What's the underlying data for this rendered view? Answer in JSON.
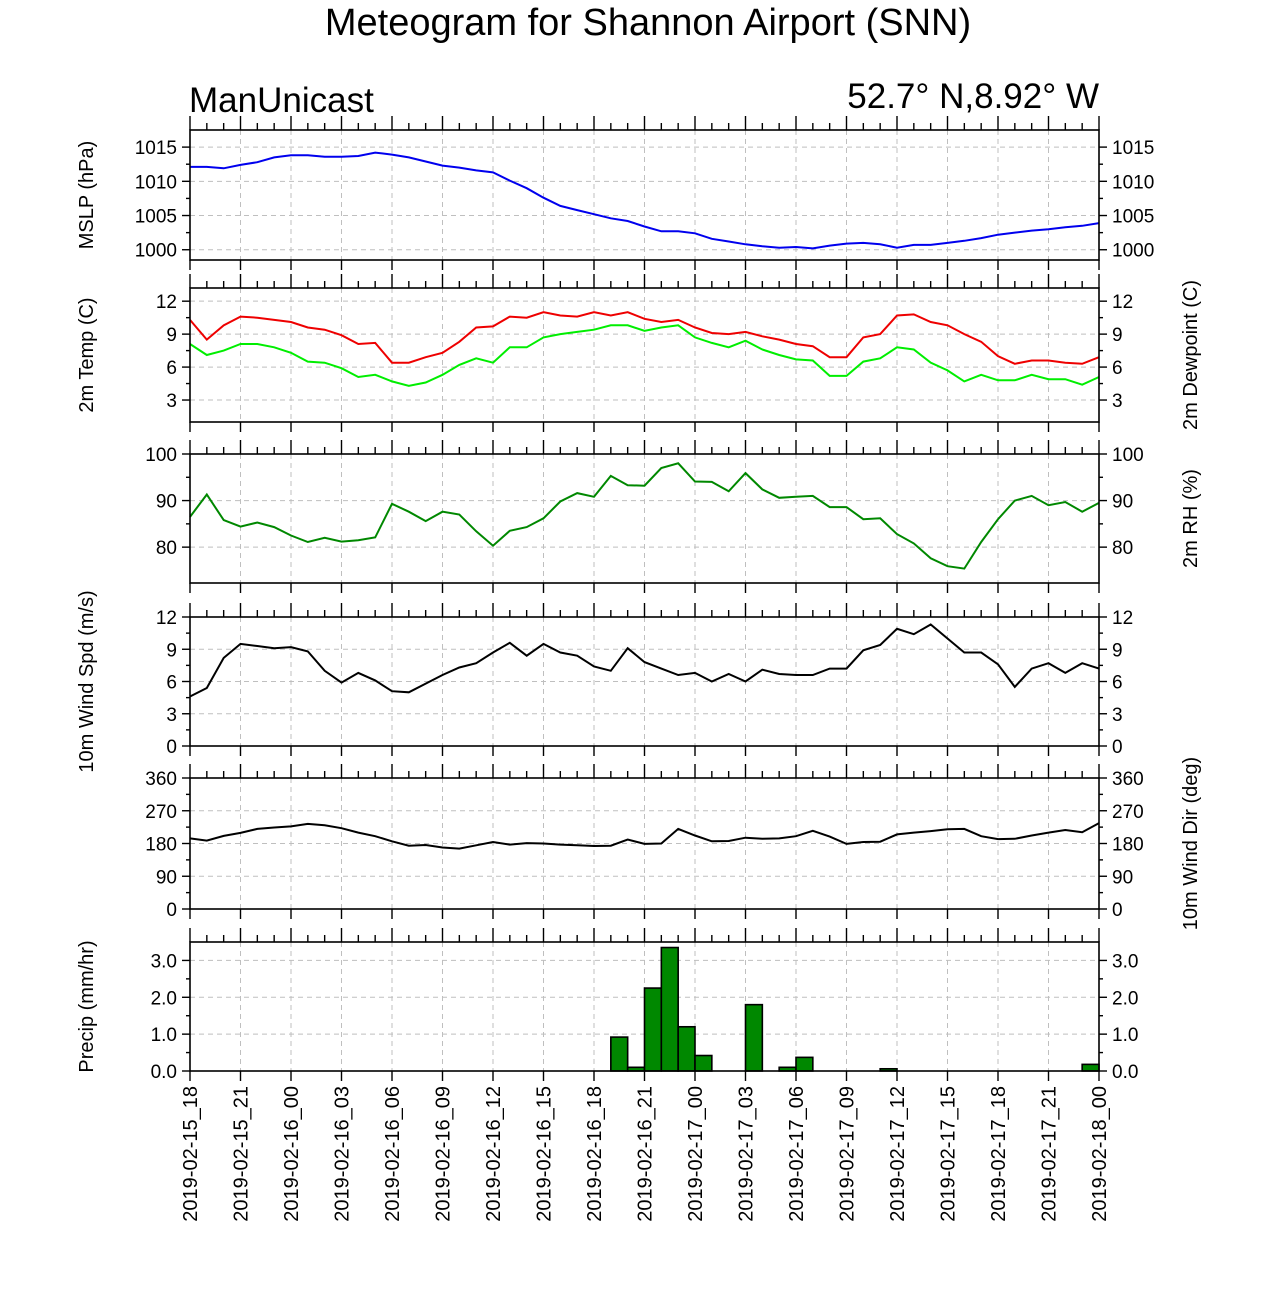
{
  "title": "Meteogram for Shannon Airport (SNN)",
  "model_label": "ManUnicast",
  "location_label": "52.7° N,8.92° W",
  "x_tick_labels": [
    "2019-02-15_18",
    "2019-02-15_21",
    "2019-02-16_00",
    "2019-02-16_03",
    "2019-02-16_06",
    "2019-02-16_09",
    "2019-02-16_12",
    "2019-02-16_15",
    "2019-02-16_18",
    "2019-02-16_21",
    "2019-02-17_00",
    "2019-02-17_03",
    "2019-02-17_06",
    "2019-02-17_09",
    "2019-02-17_12",
    "2019-02-17_15",
    "2019-02-17_18",
    "2019-02-17_21",
    "2019-02-18_00"
  ],
  "colors": {
    "mslp": "#0000ee",
    "temp": "#ee0000",
    "dewpoint": "#00ee00",
    "rh": "#008800",
    "wind": "#000000",
    "precip": "#008800"
  },
  "chart_data": [
    {
      "type": "line",
      "ylabel_left": "MSLP (hPa)",
      "ylim": [
        998.5,
        1017.5
      ],
      "yticks": [
        1000,
        1005,
        1010,
        1015
      ],
      "ytick_labels": [
        "1000",
        "1005",
        "1010",
        "1015"
      ],
      "series": [
        {
          "color_key": "mslp",
          "x_hours": [
            0,
            1,
            2,
            3,
            4,
            5,
            6,
            7,
            8,
            9,
            10,
            11,
            12,
            13,
            14,
            15,
            16,
            17,
            18,
            19,
            20,
            21,
            22,
            23,
            24,
            25,
            26,
            27,
            28,
            29,
            30,
            31,
            32,
            33,
            34,
            35,
            36,
            37,
            38,
            39,
            40,
            41,
            42,
            43,
            44,
            45,
            46,
            47,
            48,
            49,
            50,
            51,
            52,
            53,
            54
          ],
          "values": [
            1012.1,
            1012.1,
            1011.9,
            1012.4,
            1012.8,
            1013.5,
            1013.8,
            1013.8,
            1013.6,
            1013.6,
            1013.7,
            1014.2,
            1013.9,
            1013.5,
            1012.9,
            1012.3,
            1012.0,
            1011.6,
            1011.3,
            1010.1,
            1009.0,
            1007.6,
            1006.4,
            1005.8,
            1005.2,
            1004.6,
            1004.2,
            1003.4,
            1002.7,
            1002.7,
            1002.4,
            1001.6,
            1001.2,
            1000.8,
            1000.5,
            1000.3,
            1000.4,
            1000.2,
            1000.6,
            1000.9,
            1001.0,
            1000.8,
            1000.3,
            1000.7,
            1000.7,
            1001.0,
            1001.3,
            1001.7,
            1002.2,
            1002.5,
            1002.8,
            1003.0,
            1003.3,
            1003.5,
            1003.9
          ]
        }
      ]
    },
    {
      "type": "line",
      "ylabel_left": "2m Temp (C)",
      "ylabel_right": "2m Dewpoint (C)",
      "ylim": [
        1,
        13.2
      ],
      "yticks": [
        3,
        6,
        9,
        12
      ],
      "ytick_labels": [
        "3",
        "6",
        "9",
        "12"
      ],
      "series": [
        {
          "color_key": "temp",
          "x_hours": [
            0,
            1,
            2,
            3,
            4,
            5,
            6,
            7,
            8,
            9,
            10,
            11,
            12,
            13,
            14,
            15,
            16,
            17,
            18,
            19,
            20,
            21,
            22,
            23,
            24,
            25,
            26,
            27,
            28,
            29,
            30,
            31,
            32,
            33,
            34,
            35,
            36,
            37,
            38,
            39,
            40,
            41,
            42,
            43,
            44,
            45,
            46,
            47,
            48,
            49,
            50,
            51,
            52,
            53,
            54
          ],
          "values": [
            10.3,
            8.5,
            9.8,
            10.6,
            10.5,
            10.3,
            10.1,
            9.6,
            9.4,
            8.9,
            8.1,
            8.2,
            6.4,
            6.4,
            6.9,
            7.3,
            8.3,
            9.6,
            9.7,
            10.6,
            10.5,
            11.0,
            10.7,
            10.6,
            11.0,
            10.7,
            11.0,
            10.4,
            10.1,
            10.3,
            9.6,
            9.1,
            9.0,
            9.2,
            8.8,
            8.5,
            8.1,
            7.9,
            6.9,
            6.9,
            8.7,
            9.0,
            10.7,
            10.8,
            10.1,
            9.8,
            9.0,
            8.3,
            7.0,
            6.3,
            6.6,
            6.6,
            6.4,
            6.3,
            6.9
          ]
        },
        {
          "color_key": "dewpoint",
          "x_hours": [
            0,
            1,
            2,
            3,
            4,
            5,
            6,
            7,
            8,
            9,
            10,
            11,
            12,
            13,
            14,
            15,
            16,
            17,
            18,
            19,
            20,
            21,
            22,
            23,
            24,
            25,
            26,
            27,
            28,
            29,
            30,
            31,
            32,
            33,
            34,
            35,
            36,
            37,
            38,
            39,
            40,
            41,
            42,
            43,
            44,
            45,
            46,
            47,
            48,
            49,
            50,
            51,
            52,
            53,
            54
          ],
          "values": [
            8.1,
            7.1,
            7.5,
            8.1,
            8.1,
            7.8,
            7.3,
            6.5,
            6.4,
            5.9,
            5.1,
            5.3,
            4.7,
            4.3,
            4.6,
            5.3,
            6.2,
            6.8,
            6.4,
            7.8,
            7.8,
            8.7,
            9.0,
            9.2,
            9.4,
            9.8,
            9.8,
            9.3,
            9.6,
            9.8,
            8.7,
            8.2,
            7.8,
            8.4,
            7.6,
            7.1,
            6.7,
            6.6,
            5.2,
            5.2,
            6.5,
            6.8,
            7.8,
            7.6,
            6.4,
            5.7,
            4.7,
            5.3,
            4.8,
            4.8,
            5.3,
            4.9,
            4.9,
            4.4,
            5.1
          ]
        }
      ]
    },
    {
      "type": "line",
      "ylabel_right": "2m RH (%)",
      "ylim": [
        72.3,
        100
      ],
      "yticks": [
        80,
        90,
        100
      ],
      "ytick_labels": [
        "80",
        "90",
        "100"
      ],
      "series": [
        {
          "color_key": "rh",
          "x_hours": [
            0,
            1,
            2,
            3,
            4,
            5,
            6,
            7,
            8,
            9,
            10,
            11,
            12,
            13,
            14,
            15,
            16,
            17,
            18,
            19,
            20,
            21,
            22,
            23,
            24,
            25,
            26,
            27,
            28,
            29,
            30,
            31,
            32,
            33,
            34,
            35,
            36,
            37,
            38,
            39,
            40,
            41,
            42,
            43,
            44,
            45,
            46,
            47,
            48,
            49,
            50,
            51,
            52,
            53,
            54
          ],
          "values": [
            86.5,
            91.3,
            85.8,
            84.4,
            85.3,
            84.3,
            82.5,
            81.1,
            82.0,
            81.2,
            81.5,
            82.1,
            89.3,
            87.6,
            85.6,
            87.6,
            87.0,
            83.4,
            80.3,
            83.5,
            84.3,
            86.2,
            89.8,
            91.6,
            90.8,
            95.3,
            93.3,
            93.2,
            97.0,
            98.0,
            94.1,
            94.0,
            92.0,
            95.9,
            92.4,
            90.6,
            90.8,
            91.0,
            88.6,
            88.6,
            86.0,
            86.2,
            82.8,
            80.8,
            77.6,
            75.9,
            75.4,
            81.1,
            86.0,
            90.0,
            91.0,
            89.0,
            89.7,
            87.6,
            89.5
          ]
        }
      ]
    },
    {
      "type": "line",
      "ylabel_left": "10m Wind Spd (m/s)",
      "ylim": [
        0,
        12
      ],
      "yticks": [
        0,
        3,
        6,
        9,
        12
      ],
      "ytick_labels": [
        "0",
        "3",
        "6",
        "9",
        "12"
      ],
      "series": [
        {
          "color_key": "wind",
          "x_hours": [
            0,
            1,
            2,
            3,
            4,
            5,
            6,
            7,
            8,
            9,
            10,
            11,
            12,
            13,
            14,
            15,
            16,
            17,
            18,
            19,
            20,
            21,
            22,
            23,
            24,
            25,
            26,
            27,
            28,
            29,
            30,
            31,
            32,
            33,
            34,
            35,
            36,
            37,
            38,
            39,
            40,
            41,
            42,
            43,
            44,
            45,
            46,
            47,
            48,
            49,
            50,
            51,
            52,
            53,
            54
          ],
          "values": [
            4.6,
            5.4,
            8.2,
            9.5,
            9.3,
            9.1,
            9.2,
            8.8,
            7.0,
            5.9,
            6.8,
            6.1,
            5.1,
            5.0,
            5.8,
            6.6,
            7.3,
            7.7,
            8.7,
            9.6,
            8.4,
            9.5,
            8.7,
            8.4,
            7.4,
            7.0,
            9.1,
            7.8,
            7.2,
            6.6,
            6.8,
            6.0,
            6.7,
            6.0,
            7.1,
            6.7,
            6.6,
            6.6,
            7.2,
            7.2,
            8.9,
            9.4,
            10.9,
            10.4,
            11.3,
            10.0,
            8.7,
            8.7,
            7.6,
            5.5,
            7.2,
            7.7,
            6.8,
            7.7,
            7.2
          ]
        }
      ]
    },
    {
      "type": "line",
      "ylabel_right": "10m Wind Dir (deg)",
      "ylim": [
        0,
        360
      ],
      "yticks": [
        0,
        90,
        180,
        270,
        360
      ],
      "ytick_labels": [
        "0",
        "90",
        "180",
        "270",
        "360"
      ],
      "series": [
        {
          "color_key": "wind",
          "x_hours": [
            0,
            1,
            2,
            3,
            4,
            5,
            6,
            7,
            8,
            9,
            10,
            11,
            12,
            13,
            14,
            15,
            16,
            17,
            18,
            19,
            20,
            21,
            22,
            23,
            24,
            25,
            26,
            27,
            28,
            29,
            30,
            31,
            32,
            33,
            34,
            35,
            36,
            37,
            38,
            39,
            40,
            41,
            42,
            43,
            44,
            45,
            46,
            47,
            48,
            49,
            50,
            51,
            52,
            53,
            54
          ],
          "values": [
            194,
            188,
            201,
            209,
            220,
            224,
            227,
            234,
            230,
            222,
            210,
            200,
            186,
            174,
            176,
            169,
            166,
            175,
            184,
            177,
            181,
            180,
            177,
            175,
            173,
            174,
            191,
            179,
            180,
            220,
            202,
            186,
            187,
            196,
            193,
            194,
            200,
            215,
            199,
            179,
            184,
            185,
            205,
            210,
            214,
            219,
            220,
            200,
            192,
            193,
            202,
            210,
            217,
            211,
            236
          ]
        }
      ]
    },
    {
      "type": "bar",
      "ylabel_left": "Precip (mm/hr)",
      "ylim": [
        0,
        3.5
      ],
      "yticks": [
        0,
        1,
        2,
        3
      ],
      "ytick_labels": [
        "0.0",
        "1.0",
        "2.0",
        "3.0"
      ],
      "bar_start_hours": [
        25,
        26,
        27,
        28,
        29,
        30,
        33,
        35,
        36,
        41,
        53
      ],
      "values": [
        0.92,
        0.1,
        2.25,
        3.35,
        1.2,
        0.42,
        1.8,
        0.1,
        0.37,
        0.06,
        0.18
      ]
    }
  ]
}
